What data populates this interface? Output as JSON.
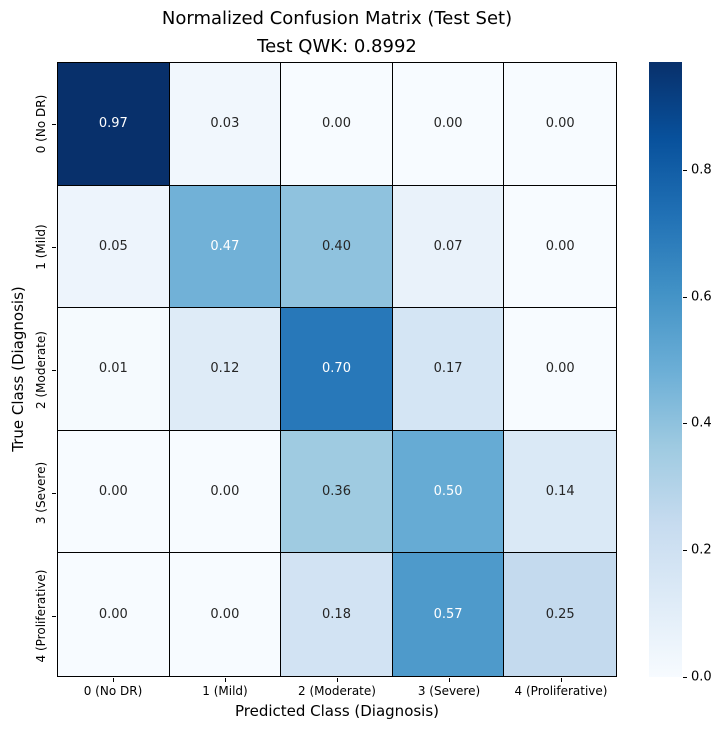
{
  "chart_data": {
    "type": "heatmap",
    "title": "Normalized Confusion Matrix (Test Set)",
    "subtitle": "Test QWK: 0.8992",
    "xlabel": "Predicted Class (Diagnosis)",
    "ylabel": "True Class (Diagnosis)",
    "x_categories": [
      "0 (No DR)",
      "1 (Mild)",
      "2 (Moderate)",
      "3 (Severe)",
      "4 (Proliferative)"
    ],
    "y_categories": [
      "0 (No DR)",
      "1 (Mild)",
      "2 (Moderate)",
      "3 (Severe)",
      "4 (Proliferative)"
    ],
    "rows": [
      [
        0.97,
        0.03,
        0.0,
        0.0,
        0.0
      ],
      [
        0.05,
        0.47,
        0.4,
        0.07,
        0.0
      ],
      [
        0.01,
        0.12,
        0.7,
        0.17,
        0.0
      ],
      [
        0.0,
        0.0,
        0.36,
        0.5,
        0.14
      ],
      [
        0.0,
        0.0,
        0.18,
        0.57,
        0.25
      ]
    ],
    "value_decimals": 2,
    "vmin": 0.0,
    "vmax": 0.97,
    "colormap": "Blues",
    "colormap_anchors": [
      "#f7fbff",
      "#deebf7",
      "#c6dbef",
      "#9ecae1",
      "#6baed6",
      "#4292c6",
      "#2171b5",
      "#08519c",
      "#08306b"
    ],
    "annotation_dark_color": "#262626",
    "annotation_light_color": "#ffffff",
    "grid_line_color": "#000000",
    "colorbar": {
      "position": "right",
      "ticks": [
        0.0,
        0.2,
        0.4,
        0.6,
        0.8
      ],
      "tick_decimals": 1
    },
    "legend_position": "right-colorbar",
    "grid": "black cell borders"
  }
}
